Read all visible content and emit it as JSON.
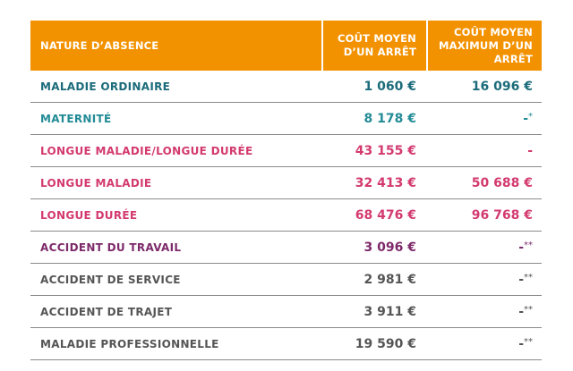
{
  "table": {
    "headers": {
      "nature": "NATURE D’ABSENCE",
      "cout_moyen": "COÛT MOYEN D’UN ARRÊT",
      "cout_moyen_max": "COÛT MOYEN MAXIMUM D’UN ARRÊT"
    },
    "header_color": "#f39200",
    "rows": [
      {
        "nature": "MALADIE ORDINAIRE",
        "cout_moyen": "1 060 €",
        "cout_max": "16 096 €",
        "max_note": "",
        "color": "#1b6b7a"
      },
      {
        "nature": "MATERNITÉ",
        "cout_moyen": "8 178 €",
        "cout_max": "-",
        "max_note": "*",
        "color": "#228b96"
      },
      {
        "nature": "LONGUE MALADIE/LONGUE DURÉE",
        "cout_moyen": "43 155 €",
        "cout_max": "-",
        "max_note": "",
        "color": "#d33a6f"
      },
      {
        "nature": "LONGUE MALADIE",
        "cout_moyen": "32 413 €",
        "cout_max": "50 688 €",
        "max_note": "",
        "color": "#d33a6f"
      },
      {
        "nature": "LONGUE DURÉE",
        "cout_moyen": "68 476 €",
        "cout_max": "96 768 €",
        "max_note": "",
        "color": "#d33a6f"
      },
      {
        "nature": "ACCIDENT DU TRAVAIL",
        "cout_moyen": "3 096 €",
        "cout_max": "-",
        "max_note": "**",
        "color": "#7d2a6a"
      },
      {
        "nature": "ACCIDENT DE SERVICE",
        "cout_moyen": "2 981 €",
        "cout_max": "-",
        "max_note": "**",
        "color": "#555555"
      },
      {
        "nature": "ACCIDENT DE TRAJET",
        "cout_moyen": "3 911 €",
        "cout_max": "-",
        "max_note": "**",
        "color": "#555555"
      },
      {
        "nature": "MALADIE PROFESSIONNELLE",
        "cout_moyen": "19 590 €",
        "cout_max": "-",
        "max_note": "**",
        "color": "#555555"
      }
    ]
  }
}
